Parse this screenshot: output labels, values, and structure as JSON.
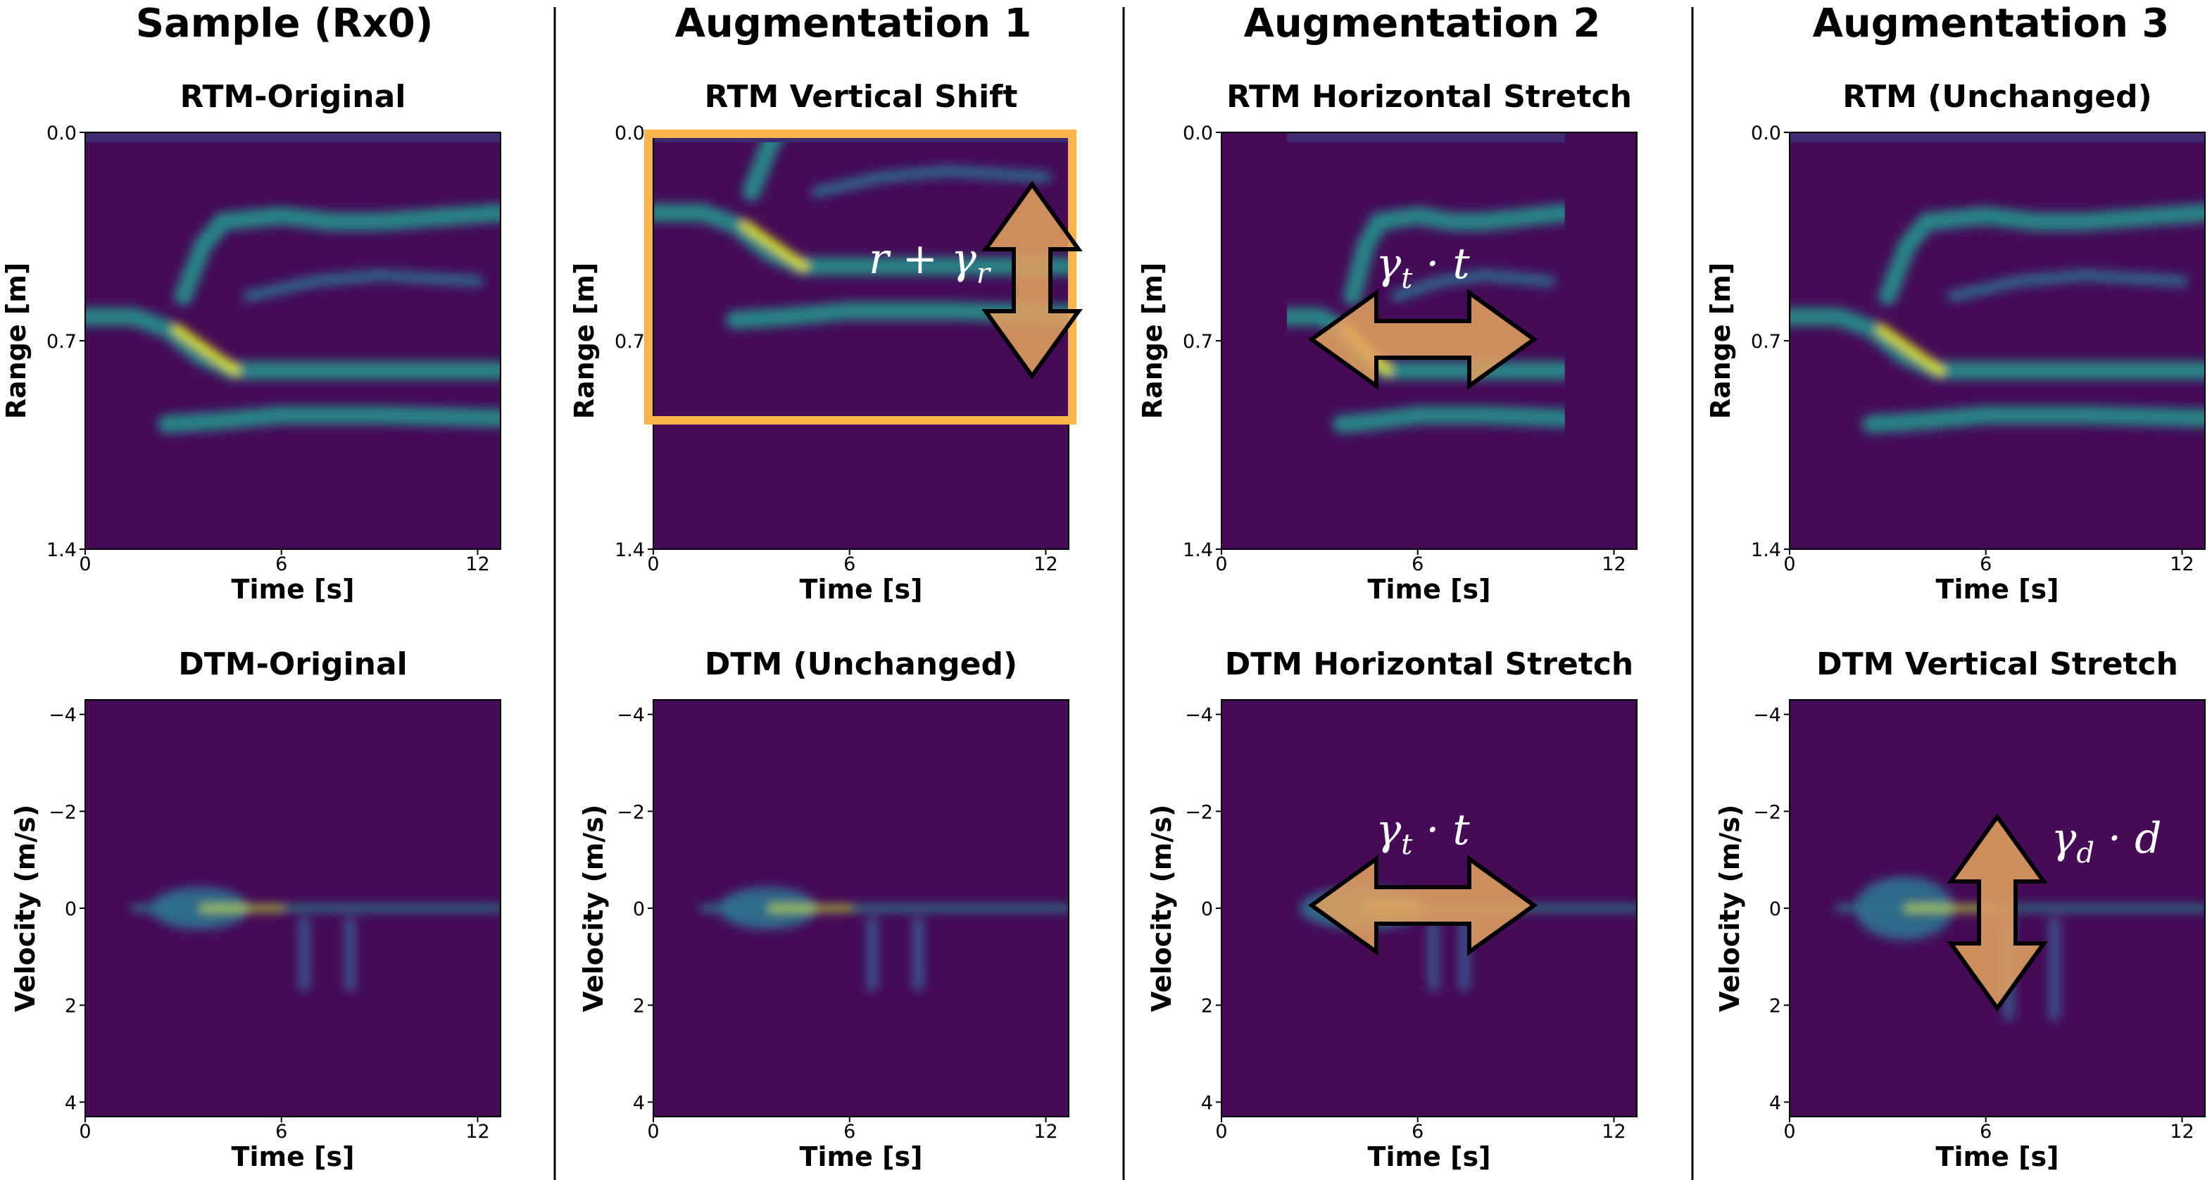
{
  "column_titles": [
    "Sample (Rx0)",
    "Augmentation 1",
    "Augmentation 2",
    "Augmentation 3"
  ],
  "chart_data": [
    {
      "type": "heatmap",
      "title": "RTM-Original",
      "xlabel": "Time [s]",
      "ylabel": "Range [m]",
      "xlim": [
        0,
        12.7
      ],
      "xticks": [
        0,
        6,
        12
      ],
      "ylim": [
        0,
        1.4
      ],
      "y_inverted": true,
      "yticks": [
        {
          "value": 0,
          "label": "0.0"
        },
        0.7,
        1.4
      ]
    },
    {
      "type": "heatmap",
      "title": "DTM-Original",
      "xlabel": "Time [s]",
      "ylabel": "Velocity (m/s)",
      "xlim": [
        0,
        12.7
      ],
      "xticks": [
        0,
        6,
        12
      ],
      "ylim": [
        -4.3,
        4.3
      ],
      "y_inverted": true,
      "yticks": [
        {
          "value": -4,
          "label": "−4"
        },
        {
          "value": -2,
          "label": "−2"
        },
        0,
        2,
        4
      ]
    },
    {
      "type": "heatmap",
      "title": "RTM Vertical Shift",
      "xlabel": "Time [s]",
      "ylabel": "Range [m]",
      "xlim": [
        0,
        12.7
      ],
      "xticks": [
        0,
        6,
        12
      ],
      "ylim": [
        0,
        1.4
      ],
      "y_inverted": true,
      "yticks": [
        {
          "value": 0,
          "label": "0.0"
        },
        0.7,
        1.4
      ],
      "annotations": [
        {
          "text": "r + γ",
          "sub": "r"
        }
      ]
    },
    {
      "type": "heatmap",
      "title": "DTM (Unchanged)",
      "xlabel": "Time [s]",
      "ylabel": "Velocity (m/s)",
      "xlim": [
        0,
        12.7
      ],
      "xticks": [
        0,
        6,
        12
      ],
      "ylim": [
        -4.3,
        4.3
      ],
      "y_inverted": true,
      "yticks": [
        {
          "value": -4,
          "label": "−4"
        },
        {
          "value": -2,
          "label": "−2"
        },
        0,
        2,
        4
      ]
    },
    {
      "type": "heatmap",
      "title": "RTM Horizontal Stretch",
      "xlabel": "Time [s]",
      "ylabel": "Range [m]",
      "xlim": [
        0,
        12.7
      ],
      "xticks": [
        0,
        6,
        12
      ],
      "ylim": [
        0,
        1.4
      ],
      "y_inverted": true,
      "yticks": [
        {
          "value": 0,
          "label": "0.0"
        },
        0.7,
        1.4
      ],
      "annotations": [
        {
          "text": "γ",
          "sub": "t",
          "after": " · t"
        }
      ]
    },
    {
      "type": "heatmap",
      "title": "DTM Horizontal Stretch",
      "xlabel": "Time [s]",
      "ylabel": "Velocity (m/s)",
      "xlim": [
        0,
        12.7
      ],
      "xticks": [
        0,
        6,
        12
      ],
      "ylim": [
        -4.3,
        4.3
      ],
      "y_inverted": true,
      "yticks": [
        {
          "value": -4,
          "label": "−4"
        },
        {
          "value": -2,
          "label": "−2"
        },
        0,
        2,
        4
      ],
      "annotations": [
        {
          "text": "γ",
          "sub": "t",
          "after": " · t"
        }
      ]
    },
    {
      "type": "heatmap",
      "title": "RTM (Unchanged)",
      "xlabel": "Time [s]",
      "ylabel": "Range [m]",
      "xlim": [
        0,
        12.7
      ],
      "xticks": [
        0,
        6,
        12
      ],
      "ylim": [
        0,
        1.4
      ],
      "y_inverted": true,
      "yticks": [
        {
          "value": 0,
          "label": "0.0"
        },
        0.7,
        1.4
      ]
    },
    {
      "type": "heatmap",
      "title": "DTM Vertical Stretch",
      "xlabel": "Time [s]",
      "ylabel": "Velocity (m/s)",
      "xlim": [
        0,
        12.7
      ],
      "xticks": [
        0,
        6,
        12
      ],
      "ylim": [
        -4.3,
        4.3
      ],
      "y_inverted": true,
      "yticks": [
        {
          "value": -4,
          "label": "−4"
        },
        {
          "value": -2,
          "label": "−2"
        },
        0,
        2,
        4
      ],
      "annotations": [
        {
          "text": "γ",
          "sub": "d",
          "after": " · d"
        }
      ]
    }
  ]
}
